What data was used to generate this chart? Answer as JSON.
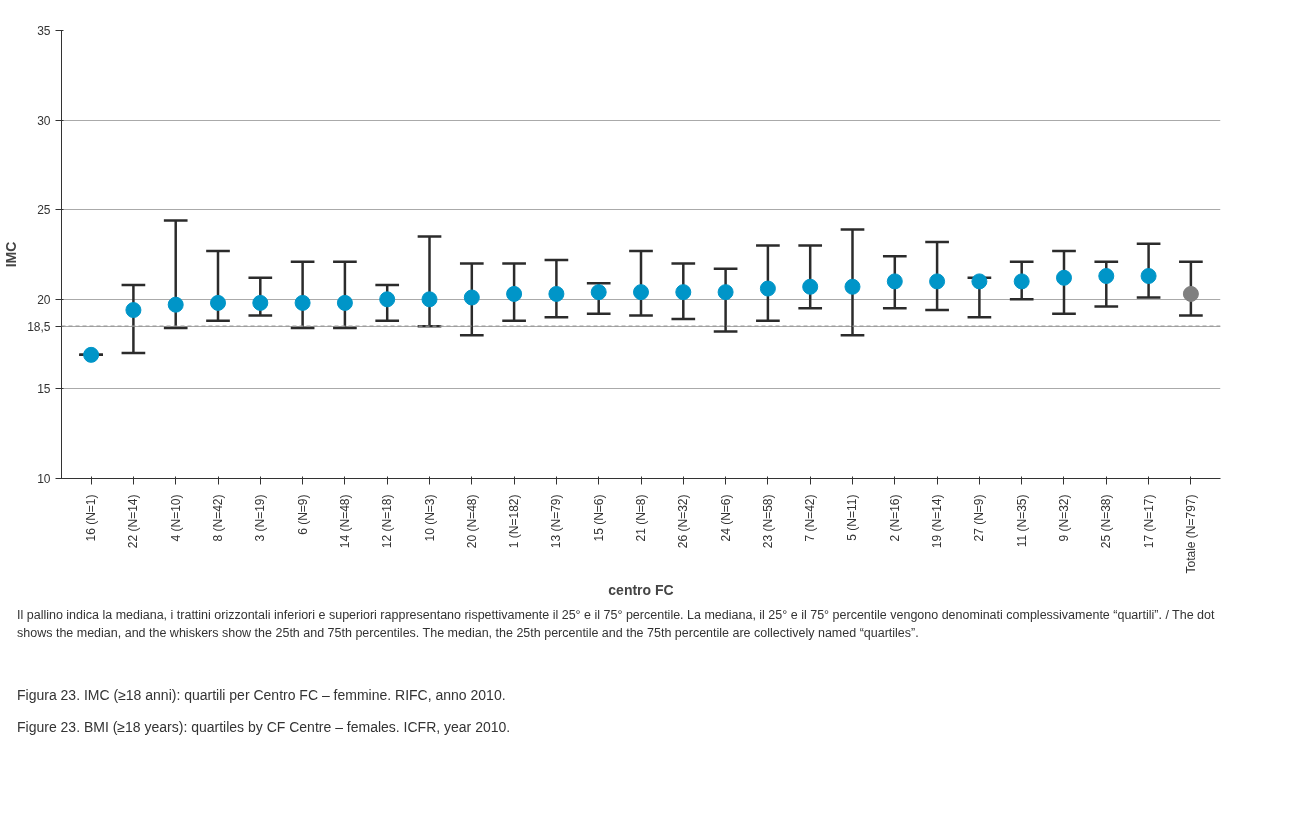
{
  "chart_data": {
    "type": "scatter",
    "xlabel": "centro FC",
    "ylabel": "IMC",
    "categories": [
      "16 (N=1)",
      "22 (N=14)",
      "4 (N=10)",
      "8 (N=42)",
      "3 (N=19)",
      "6 (N=9)",
      "14 (N=48)",
      "12 (N=18)",
      "10 (N=3)",
      "20 (N=48)",
      "1 (N=182)",
      "13 (N=79)",
      "15 (N=6)",
      "21 (N=8)",
      "26 (N=32)",
      "24 (N=6)",
      "23 (N=58)",
      "7 (N=42)",
      "5 (N=11)",
      "2 (N=16)",
      "19 (N=14)",
      "27 (N=9)",
      "11 (N=35)",
      "9 (N=32)",
      "25 (N=38)",
      "17 (N=17)",
      "Totale (N=797)"
    ],
    "values": [
      16.9,
      19.4,
      19.7,
      19.8,
      19.8,
      19.8,
      19.8,
      20.0,
      20.0,
      20.1,
      20.3,
      20.3,
      20.4,
      20.4,
      20.4,
      20.4,
      20.6,
      20.7,
      20.7,
      21.0,
      21.0,
      21.0,
      21.0,
      21.2,
      21.3,
      21.3,
      20.3
    ],
    "errors": [
      [
        16.9,
        16.9
      ],
      [
        17.0,
        20.8
      ],
      [
        18.4,
        24.4
      ],
      [
        18.8,
        22.7
      ],
      [
        19.1,
        21.2
      ],
      [
        18.4,
        22.1
      ],
      [
        18.4,
        22.1
      ],
      [
        18.8,
        20.8
      ],
      [
        18.5,
        23.5
      ],
      [
        18.0,
        22.0
      ],
      [
        18.8,
        22.0
      ],
      [
        19.0,
        22.2
      ],
      [
        19.2,
        20.9
      ],
      [
        19.1,
        22.7
      ],
      [
        18.9,
        22.0
      ],
      [
        18.2,
        21.7
      ],
      [
        18.8,
        23.0
      ],
      [
        19.5,
        23.0
      ],
      [
        18.0,
        23.9
      ],
      [
        19.5,
        22.4
      ],
      [
        19.4,
        23.2
      ],
      [
        19.0,
        21.2
      ],
      [
        20.0,
        22.1
      ],
      [
        19.2,
        22.7
      ],
      [
        19.6,
        22.1
      ],
      [
        20.1,
        23.1
      ],
      [
        19.1,
        22.1
      ]
    ],
    "colors": [
      "#0095c8",
      "#0095c8",
      "#0095c8",
      "#0095c8",
      "#0095c8",
      "#0095c8",
      "#0095c8",
      "#0095c8",
      "#0095c8",
      "#0095c8",
      "#0095c8",
      "#0095c8",
      "#0095c8",
      "#0095c8",
      "#0095c8",
      "#0095c8",
      "#0095c8",
      "#0095c8",
      "#0095c8",
      "#0095c8",
      "#0095c8",
      "#0095c8",
      "#0095c8",
      "#0095c8",
      "#0095c8",
      "#0095c8",
      "#808080"
    ],
    "ylim": [
      10,
      35
    ],
    "yticks": [
      10,
      15,
      {
        "value": 18.5,
        "label": "18,5"
      },
      20,
      25,
      30,
      35
    ],
    "ref_lines": [
      {
        "axis": "y",
        "value": 18.5,
        "label": null,
        "color": "#999999",
        "line_style": "dashed"
      }
    ],
    "grid": "y",
    "marker": "circle",
    "annotations": [
      "Il pallino indica la mediana, i trattini orizzontali inferiori e superiori rappresentano rispettivamente il 25° e il 75° percentile. La mediana, il 25° e il 75° percentile vengono denominati complessivamente “quartili”. / The dot shows the median, and the whiskers show the 25th and 75th percentiles. The median, the 25th percentile and the 75th percentile are collectively named “quartiles”.",
      "Figura 23. IMC (≥18 anni): quartili per Centro FC – femmine. RIFC, anno 2010.",
      "Figure 23. BMI (≥18 years): quartiles by CF Centre – females. ICFR, year 2010."
    ]
  }
}
